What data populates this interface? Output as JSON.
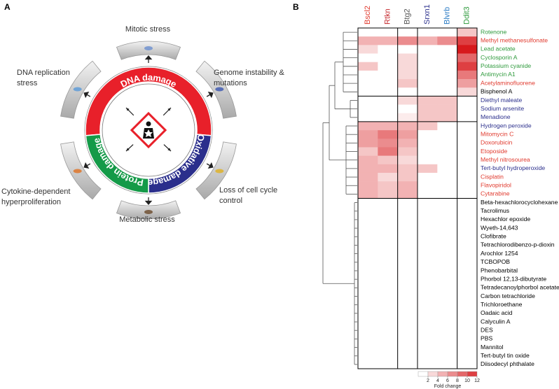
{
  "panel_labels": [
    "A",
    "B"
  ],
  "diagram": {
    "ring": [
      "DNA damage",
      "Oxidative damage",
      "Protein damage"
    ],
    "stresses": [
      {
        "lines": [
          "Mitotic stress"
        ]
      },
      {
        "lines": [
          "Genome instability &",
          "mutations"
        ]
      },
      {
        "lines": [
          "Loss of cell cycle",
          "control"
        ]
      },
      {
        "lines": [
          "Metabolic stress"
        ]
      },
      {
        "lines": [
          "Cytokine-dependent",
          "hyperproliferation"
        ]
      },
      {
        "lines": [
          "DNA replication",
          "stress"
        ]
      }
    ]
  },
  "chart_data": {
    "type": "heatmap",
    "columns": [
      "Bscl2",
      "Rtkn",
      "Btg2",
      "Srxn1",
      "Blvrb",
      "Ddit3"
    ],
    "column_colors": [
      "#e0392d",
      "#c4262a",
      "#555555",
      "#2b2f8c",
      "#2a7bc4",
      "#2e9a3c"
    ],
    "rows": [
      "Rotenone",
      "Methyl methanesulfonate",
      "Lead acetate",
      "Cyclosporin A",
      "Potassium cyanide",
      "Antimycin A1",
      "Acetylaminofluorene",
      "Bisphenol A",
      "Diethyl maleate",
      "Sodium arsenite",
      "Menadione",
      "Hydrogen peroxide",
      "Mitomycin C",
      "Doxorubicin",
      "Etoposide",
      "Methyl nitrosourea",
      "Tert-butyl hydroperoxide",
      "Cisplatin",
      "Flavopiridol",
      "Cytarabine",
      "Beta-hexachlorocyclohexane",
      "Tacrolimus",
      "Hexachlor epoxide",
      "Wyeth-14,643",
      "Clofibrate",
      "Tetrachlorodibenzo-p-dioxin",
      "Arochlor 1254",
      "TCBOPOB",
      "Phenobarbital",
      "Phorbol 12,13-dibutyrate",
      "Tetradecanoylphorbol acetate",
      "Carbon tetrachloride",
      "Trichloroethane",
      "Oadaic acid",
      "Calyculin A",
      "DES",
      "PBS",
      "Mannitol",
      "Tert-butyl tin oxide",
      "Diisodecyl phthalate"
    ],
    "row_colors": [
      "#2e9a3c",
      "#e0392d",
      "#2e9a3c",
      "#2e9a3c",
      "#2e9a3c",
      "#2e9a3c",
      "#e0392d",
      "#000000",
      "#2b2f8c",
      "#2b2f8c",
      "#2b2f8c",
      "#2b2f8c",
      "#e0392d",
      "#e0392d",
      "#e0392d",
      "#e0392d",
      "#2b2f8c",
      "#e0392d",
      "#e0392d",
      "#e0392d",
      "#000000",
      "#000000",
      "#000000",
      "#000000",
      "#000000",
      "#000000",
      "#000000",
      "#000000",
      "#000000",
      "#000000",
      "#000000",
      "#000000",
      "#000000",
      "#000000",
      "#000000",
      "#000000",
      "#000000",
      "#000000",
      "#000000",
      "#000000"
    ],
    "values": [
      [
        0,
        0,
        0,
        0,
        0,
        3
      ],
      [
        4,
        4,
        6,
        4,
        6,
        10
      ],
      [
        2,
        0,
        0,
        0,
        0,
        12
      ],
      [
        0,
        0,
        2,
        0,
        0,
        8
      ],
      [
        3,
        0,
        2,
        0,
        0,
        10
      ],
      [
        0,
        0,
        2,
        0,
        0,
        7
      ],
      [
        0,
        0,
        3,
        0,
        0,
        5
      ],
      [
        0,
        0,
        0,
        0,
        0,
        2
      ],
      [
        0,
        0,
        2,
        3,
        3,
        0
      ],
      [
        0,
        0,
        0,
        3,
        3,
        0
      ],
      [
        0,
        0,
        1,
        3,
        3,
        0
      ],
      [
        4,
        4,
        4,
        3,
        0,
        0
      ],
      [
        5,
        7,
        5,
        0,
        0,
        0
      ],
      [
        5,
        6,
        4,
        0,
        0,
        0
      ],
      [
        3,
        7,
        3,
        0,
        0,
        0
      ],
      [
        4,
        3,
        2,
        0,
        0,
        0
      ],
      [
        4,
        4,
        3,
        3,
        0,
        0
      ],
      [
        4,
        2,
        3,
        0,
        0,
        0
      ],
      [
        4,
        3,
        4,
        0,
        0,
        0
      ],
      [
        4,
        3,
        4,
        0,
        0,
        0
      ],
      [
        0,
        0,
        0,
        0,
        0,
        0
      ],
      [
        0,
        0,
        0,
        0,
        0,
        0
      ],
      [
        0,
        0,
        0,
        0,
        0,
        0
      ],
      [
        0,
        0,
        0,
        0,
        0,
        0
      ],
      [
        0,
        0,
        0,
        0,
        0,
        0
      ],
      [
        0,
        0,
        0,
        0,
        0,
        0
      ],
      [
        0,
        0,
        0,
        0,
        0,
        0
      ],
      [
        0,
        0,
        0,
        0,
        0,
        0
      ],
      [
        0,
        0,
        0,
        0,
        0,
        0
      ],
      [
        0,
        0,
        0,
        0,
        0,
        0
      ],
      [
        0,
        0,
        0,
        0,
        0,
        0
      ],
      [
        0,
        0,
        0,
        0,
        0,
        0
      ],
      [
        0,
        0,
        0,
        0,
        0,
        0
      ],
      [
        0,
        0,
        0,
        0,
        0,
        0
      ],
      [
        0,
        0,
        0,
        0,
        0,
        0
      ],
      [
        0,
        0,
        0,
        0,
        0,
        0
      ],
      [
        0,
        0,
        0,
        0,
        0,
        0
      ],
      [
        0,
        0,
        0,
        0,
        0,
        0
      ],
      [
        0,
        0,
        0,
        0,
        0,
        0
      ],
      [
        0,
        0,
        0,
        0,
        0,
        0
      ]
    ],
    "clim": [
      0,
      12
    ],
    "colors": [
      "#ffffff",
      "#d7191c"
    ],
    "colorbar_ticks": [
      2,
      4,
      6,
      8,
      10,
      12
    ],
    "colorbar_label": "Fold change"
  }
}
